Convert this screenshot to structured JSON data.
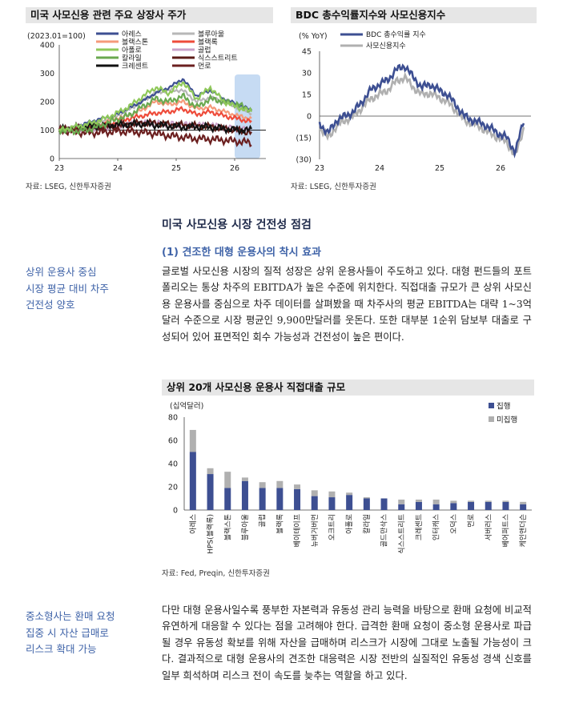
{
  "chart1": {
    "title": "미국 사모신용 관련 주요 상장사 주가",
    "unit_note": "(2023.01=100)",
    "source": "자료: LSEG, 신한투자증권",
    "y_ticks": [
      "400",
      "300",
      "200",
      "100",
      "0"
    ],
    "x_ticks": [
      "23",
      "24",
      "25",
      "26"
    ],
    "legend": [
      "아레스",
      "블루아울",
      "블랙스톤",
      "블랙록",
      "아폴로",
      "골럽",
      "칼라일",
      "식스스트리트",
      "크레센트",
      "먼로"
    ],
    "colors": {
      "ares": "#3d4f92",
      "blue_owl": "#b7b7b7",
      "blackstone": "#f59a7a",
      "blackrock": "#ee4b3a",
      "apollo": "#8fc85a",
      "golub": "#c9a0c8",
      "carlyle": "#6aa84f",
      "sixth_street": "#5c1c17",
      "crescent": "#111111",
      "monroe": "#6b1f1f",
      "highlight": "#c6dbf3"
    }
  },
  "chart2": {
    "title": "BDC 총수익률지수와 사모신용지수",
    "unit_note": "(% YoY)",
    "source": "자료: LSEG, 신한투자증권",
    "y_ticks": [
      "45",
      "30",
      "15",
      "0",
      "(15)",
      "(30)"
    ],
    "x_ticks": [
      "23",
      "24",
      "25",
      "26"
    ],
    "legend": [
      "BDC 총수익률 지수",
      "사모신용지수"
    ],
    "colors": {
      "bdc": "#3d4f92",
      "private_credit": "#b0b0b0"
    }
  },
  "section": {
    "heading": "미국 사모신용 시장 건전성 점검",
    "subheading": "(1) 견조한 대형 운용사의 착시 효과",
    "side_note_1": [
      "상위 운용사 중심",
      "시장 평균 대비 차주",
      "건전성 양호"
    ],
    "paragraph_1": "글로벌 사모신용 시장의 질적 성장은 상위 운용사들이 주도하고 있다. 대형 펀드들의 포트폴리오는 통상 차주의 EBITDA가 높은 수준에 위치한다. 직접대출 규모가 큰 상위 사모신용 운용사를 중심으로 차주 데이터를 살펴봤을 때 차주사의 평균 EBITDA는 대략 1~3억달러 수준으로 시장 평균인 9,900만달러를 웃돈다. 또한 대부분 1순위 담보부 대출로 구성되어 있어 표면적인 회수 가능성과 건전성이 높은 편이다.",
    "side_note_2": [
      "중소형사는 환매 요청",
      "집중 시 자산 급매로",
      "리스크 확대 가능"
    ],
    "paragraph_2": "다만 대형 운용사일수록 풍부한 자본력과 유동성 관리 능력을 바탕으로 환매 요청에 비교적 유연하게 대응할 수 있다는 점을 고려해야 한다. 급격한 환매 요청이 중소형 운용사로 파급될 경우 유동성 확보를 위해 자산을 급매하며 리스크가 시장에 그대로 노출될 가능성이 크다. 결과적으로 대형 운용사의 견조한 대응력은 시장 전반의 실질적인 유동성 경색 신호를 일부 희석하며 리스크 전이 속도를 늦추는 역할을 하고 있다."
  },
  "chart3": {
    "title": "상위 20개 사모신용 운용사 직접대출 규모",
    "unit_note": "(십억달러)",
    "source": "자료: Fed, Preqin, 신한투자증권",
    "legend": [
      "집행",
      "미집행"
    ],
    "colors": {
      "executed": "#3d4f92",
      "unexecuted": "#b0b0b0"
    }
  },
  "chart_data": [
    {
      "type": "line",
      "title": "미국 사모신용 관련 주요 상장사 주가",
      "ylabel": "(2023.01=100)",
      "ylim": [
        0,
        400
      ],
      "x_ticks": [
        "23",
        "24",
        "25",
        "26"
      ],
      "series": [
        {
          "name": "아레스",
          "values": [
            100,
            110,
            125,
            140,
            150,
            175,
            200,
            230,
            250,
            280,
            220,
            240,
            210,
            190,
            170
          ]
        },
        {
          "name": "블루아울",
          "values": [
            100,
            105,
            115,
            130,
            145,
            170,
            200,
            230,
            240,
            240,
            200,
            215,
            200,
            180,
            160
          ]
        },
        {
          "name": "블랙스톤",
          "values": [
            100,
            105,
            110,
            120,
            140,
            150,
            170,
            200,
            190,
            200,
            175,
            180,
            165,
            150,
            140
          ]
        },
        {
          "name": "블랙록",
          "values": [
            100,
            105,
            110,
            115,
            125,
            140,
            150,
            160,
            165,
            175,
            155,
            165,
            150,
            140,
            130
          ]
        },
        {
          "name": "아폴로",
          "values": [
            100,
            110,
            120,
            135,
            155,
            180,
            215,
            250,
            230,
            270,
            210,
            250,
            200,
            180,
            165
          ]
        },
        {
          "name": "골럽",
          "values": [
            100,
            102,
            105,
            110,
            115,
            120,
            125,
            125,
            122,
            120,
            118,
            118,
            110,
            105,
            100
          ]
        },
        {
          "name": "칼라일",
          "values": [
            100,
            95,
            100,
            115,
            135,
            150,
            180,
            210,
            200,
            220,
            180,
            210,
            200,
            190,
            170
          ]
        },
        {
          "name": "식스스트리트",
          "values": [
            100,
            105,
            108,
            112,
            115,
            120,
            125,
            125,
            120,
            118,
            115,
            112,
            105,
            100,
            90
          ]
        },
        {
          "name": "크레센트",
          "values": [
            100,
            108,
            112,
            115,
            118,
            120,
            122,
            118,
            115,
            110,
            112,
            110,
            105,
            100,
            100
          ]
        },
        {
          "name": "먼로",
          "values": [
            100,
            95,
            90,
            92,
            95,
            95,
            92,
            88,
            80,
            75,
            70,
            68,
            65,
            60,
            55
          ]
        }
      ]
    },
    {
      "type": "line",
      "title": "BDC 총수익률지수와 사모신용지수",
      "ylabel": "(% YoY)",
      "ylim": [
        -30,
        45
      ],
      "x_ticks": [
        "23",
        "24",
        "25",
        "26"
      ],
      "series": [
        {
          "name": "BDC 총수익률 지수",
          "values": [
            -5,
            -12,
            -3,
            0,
            3,
            10,
            18,
            22,
            25,
            32,
            35,
            27,
            20,
            22,
            18,
            15,
            8,
            0,
            -3,
            -5,
            -8,
            -12,
            -15,
            -25,
            -3
          ]
        },
        {
          "name": "사모신용지수",
          "values": [
            -8,
            -15,
            -7,
            -3,
            0,
            6,
            12,
            15,
            18,
            24,
            27,
            20,
            15,
            16,
            13,
            10,
            4,
            -3,
            -5,
            -8,
            -12,
            -15,
            -18,
            -28,
            -8
          ]
        }
      ]
    },
    {
      "type": "bar",
      "stacked": true,
      "title": "상위 20개 사모신용 운용사 직접대출 규모",
      "ylabel": "(십억달러)",
      "ylim": [
        0,
        80
      ],
      "categories": [
        "아레스",
        "HPS(블랙록)",
        "블랙스톤",
        "블루아울",
        "골럽",
        "블랙록",
        "베이테이프",
        "뉴버거버먼",
        "오크트리",
        "아폴로",
        "칼라일",
        "골드만삭스",
        "식스스트리트",
        "크레센트",
        "인터캐스",
        "오덕스",
        "먼로",
        "서버러스",
        "베어퍼트스",
        "케인앤더슨"
      ],
      "series": [
        {
          "name": "집행",
          "values": [
            50,
            31,
            19,
            25,
            19,
            19,
            18,
            12,
            11,
            13,
            10,
            10,
            5,
            7,
            5,
            6,
            7,
            7,
            7,
            5
          ]
        },
        {
          "name": "미집행",
          "values": [
            19,
            5,
            14,
            3,
            5,
            6,
            4,
            5,
            5,
            2,
            1,
            0,
            4,
            2,
            4,
            2,
            1,
            1,
            1,
            2
          ]
        }
      ]
    }
  ]
}
